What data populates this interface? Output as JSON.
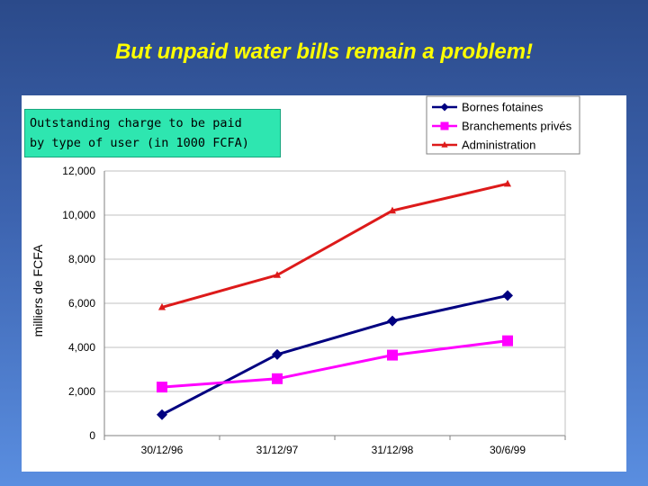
{
  "slide": {
    "title": "But unpaid water bills remain a problem!",
    "caption_line1": "Outstanding charge to be paid",
    "caption_line2": "by type of user (in 1000 FCFA)"
  },
  "chart_data": {
    "type": "line",
    "categories": [
      "30/12/96",
      "31/12/97",
      "31/12/98",
      "30/6/99"
    ],
    "ylabel": "milliers de FCFA",
    "ylim": [
      0,
      12000
    ],
    "yticks": [
      "0",
      "2,000",
      "4,000",
      "6,000",
      "8,000",
      "10,000",
      "12,000"
    ],
    "yticks_values": [
      0,
      2000,
      4000,
      6000,
      8000,
      10000,
      12000
    ],
    "grid": true,
    "legend_position": "top-right",
    "series": [
      {
        "name": "Bornes fotaines",
        "color": "#000080",
        "marker": "diamond",
        "values": [
          950,
          3680,
          5200,
          6350
        ]
      },
      {
        "name": "Branchements privés",
        "color": "#ff00ff",
        "marker": "square",
        "values": [
          2200,
          2580,
          3650,
          4300
        ]
      },
      {
        "name": "Administration",
        "color": "#dd1a1a",
        "marker": "triangle",
        "values": [
          5820,
          7280,
          10200,
          11420
        ]
      }
    ]
  }
}
